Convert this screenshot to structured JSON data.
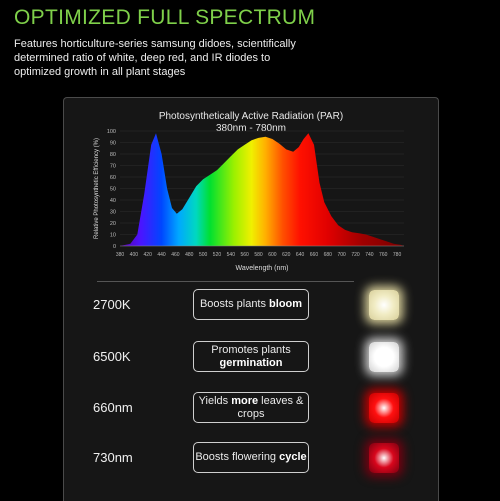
{
  "header": {
    "title": "OPTIMIZED FULL SPECTRUM",
    "description": "Features horticulture-series samsung didoes, scientifically determined ratio of white, deep red, and IR diodes to optimized growth in all plant stages"
  },
  "chart_data": {
    "type": "area",
    "title": "Photosynthetically Active Radiation (PAR)",
    "subtitle": "380nm - 780nm",
    "xlabel": "Wavelength (nm)",
    "ylabel": "Relative Photosynthetic Efficiency (%)",
    "xlim": [
      380,
      790
    ],
    "ylim": [
      0,
      100
    ],
    "x_ticks": [
      380,
      400,
      420,
      440,
      460,
      480,
      500,
      520,
      540,
      560,
      580,
      600,
      620,
      640,
      660,
      680,
      700,
      720,
      740,
      760,
      780
    ],
    "y_ticks": [
      0,
      10,
      20,
      30,
      40,
      50,
      60,
      70,
      80,
      90,
      100
    ],
    "series": [
      {
        "x": [
          380,
          395,
          405,
          415,
          425,
          432,
          440,
          448,
          455,
          462,
          470,
          480,
          490,
          500,
          510,
          520,
          530,
          540,
          550,
          560,
          570,
          580,
          590,
          600,
          610,
          620,
          630,
          638,
          645,
          652,
          660,
          668,
          675,
          685,
          695,
          705,
          715,
          725,
          735,
          745,
          755,
          765,
          775,
          785,
          790
        ],
        "values": [
          0,
          2,
          10,
          45,
          88,
          98,
          80,
          50,
          33,
          28,
          32,
          42,
          52,
          58,
          62,
          66,
          72,
          78,
          84,
          88,
          92,
          94,
          95,
          93,
          89,
          84,
          82,
          86,
          93,
          98,
          88,
          55,
          38,
          26,
          18,
          14,
          12,
          11,
          10,
          8,
          6,
          4,
          2,
          1,
          0
        ]
      }
    ]
  },
  "rows": [
    {
      "label": "2700K",
      "text_plain": "Boosts plants ",
      "text_bold": "bloom",
      "text_tail": "",
      "led_color": "#f1ecc4",
      "glow": "#d8cf9a"
    },
    {
      "label": "6500K",
      "text_plain": "Promotes plants ",
      "text_bold": "germination",
      "text_tail": "",
      "led_color": "#ffffff",
      "glow": "#cfcfcf"
    },
    {
      "label": "660nm",
      "text_plain": "Yields ",
      "text_bold": "more",
      "text_tail": " leaves & crops",
      "led_color": "#ff1010",
      "glow": "#c40000"
    },
    {
      "label": "730nm",
      "text_plain": "Boosts flowering ",
      "text_bold": "cycle",
      "text_tail": "",
      "led_color": "#d8061c",
      "glow": "#7a0010"
    }
  ]
}
